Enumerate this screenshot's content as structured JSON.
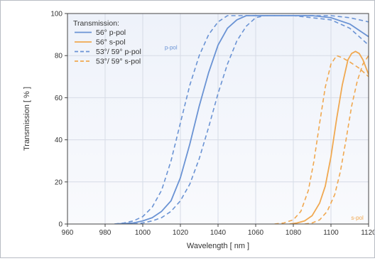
{
  "chart_data": {
    "type": "line",
    "title": "",
    "xlabel": "Wavelength [ nm ]",
    "ylabel": "Transmission [ % ]",
    "xlim": [
      960,
      1120
    ],
    "ylim": [
      0,
      100
    ],
    "xticks": [
      960,
      980,
      1000,
      1020,
      1040,
      1060,
      1080,
      1100,
      1120
    ],
    "yticks": [
      0,
      20,
      40,
      60,
      80,
      100
    ],
    "grid": true,
    "legend": {
      "title": "Transmission:",
      "position": "top-left"
    },
    "annotations": [
      {
        "text": "p-pol",
        "x": 1015,
        "y": 83,
        "color": "#6a93d4"
      },
      {
        "text": "s-pol",
        "x": 1114,
        "y": 2,
        "color": "#f0a850"
      }
    ],
    "series": [
      {
        "name": "56° p-pol",
        "color": "#6a93d4",
        "style": "solid",
        "x": [
          985,
          995,
          1000,
          1005,
          1010,
          1015,
          1020,
          1025,
          1030,
          1035,
          1040,
          1045,
          1050,
          1055,
          1060,
          1070,
          1080,
          1090,
          1100,
          1110,
          1120
        ],
        "y": [
          0,
          0.5,
          1.5,
          3,
          6,
          11,
          22,
          38,
          56,
          72,
          85,
          93,
          97,
          99,
          99,
          99,
          99,
          99,
          98,
          95,
          89
        ]
      },
      {
        "name": "56° s-pol",
        "color": "#f0a850",
        "style": "solid",
        "x": [
          1078,
          1082,
          1086,
          1090,
          1094,
          1097,
          1100,
          1103,
          1106,
          1109,
          1111,
          1113,
          1115,
          1117,
          1120
        ],
        "y": [
          0,
          0.5,
          1.5,
          4,
          10,
          18,
          32,
          50,
          66,
          78,
          81,
          82,
          81,
          78,
          71
        ]
      },
      {
        "name": "53°/ 59° p-pol",
        "color": "#6a93d4",
        "style": "dashed",
        "x": [
          985,
          990,
          995,
          1000,
          1005,
          1010,
          1015,
          1020,
          1025,
          1030,
          1035,
          1040,
          1045,
          1050,
          1060,
          1080,
          1100,
          1110,
          1120
        ],
        "y": [
          0,
          0.5,
          1.5,
          3.5,
          8,
          16,
          30,
          48,
          66,
          80,
          90,
          96,
          99,
          99,
          99,
          99,
          99,
          98,
          96
        ]
      },
      {
        "name": "53°/ 59° p-pol",
        "color": "#6a93d4",
        "style": "dashed",
        "x": [
          995,
          1000,
          1005,
          1010,
          1015,
          1020,
          1025,
          1030,
          1035,
          1040,
          1045,
          1050,
          1055,
          1060,
          1065,
          1080,
          1100,
          1110,
          1120
        ],
        "y": [
          0,
          0.5,
          1.5,
          3,
          6,
          11,
          19,
          31,
          46,
          62,
          76,
          87,
          94,
          98,
          99,
          99,
          97,
          93,
          85
        ]
      },
      {
        "name": "53°/ 59° s-pol",
        "color": "#f0a850",
        "style": "dashed",
        "x": [
          1070,
          1075,
          1080,
          1084,
          1088,
          1091,
          1094,
          1097,
          1100,
          1103,
          1106,
          1110,
          1115,
          1120
        ],
        "y": [
          0,
          0.5,
          2,
          6,
          16,
          30,
          48,
          65,
          76,
          80,
          79,
          77,
          74,
          70
        ]
      },
      {
        "name": "53°/ 59° s-pol",
        "color": "#f0a850",
        "style": "dashed",
        "x": [
          1086,
          1090,
          1094,
          1098,
          1102,
          1105,
          1108,
          1111,
          1114,
          1117,
          1120
        ],
        "y": [
          0,
          0.5,
          2,
          6,
          14,
          25,
          40,
          56,
          68,
          76,
          80
        ]
      }
    ],
    "legend_entries": [
      {
        "label": "56° p-pol",
        "color": "#6a93d4",
        "style": "solid"
      },
      {
        "label": "56° s-pol",
        "color": "#f0a850",
        "style": "solid"
      },
      {
        "label": "53°/ 59° p-pol",
        "color": "#6a93d4",
        "style": "dashed"
      },
      {
        "label": "53°/ 59° s-pol",
        "color": "#f0a850",
        "style": "dashed"
      }
    ]
  }
}
